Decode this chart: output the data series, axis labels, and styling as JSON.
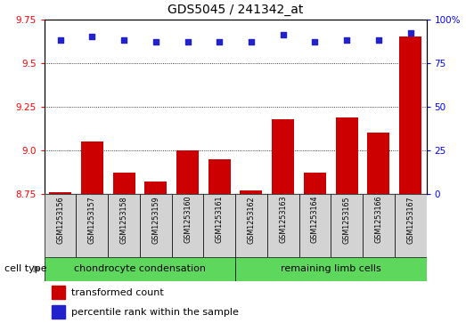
{
  "title": "GDS5045 / 241342_at",
  "samples": [
    "GSM1253156",
    "GSM1253157",
    "GSM1253158",
    "GSM1253159",
    "GSM1253160",
    "GSM1253161",
    "GSM1253162",
    "GSM1253163",
    "GSM1253164",
    "GSM1253165",
    "GSM1253166",
    "GSM1253167"
  ],
  "transformed_counts": [
    8.76,
    9.05,
    8.87,
    8.82,
    9.0,
    8.95,
    8.77,
    9.18,
    8.87,
    9.19,
    9.1,
    9.65
  ],
  "percentile_ranks": [
    88,
    90,
    88,
    87,
    87,
    87,
    87,
    91,
    87,
    88,
    88,
    92
  ],
  "ylim_left": [
    8.75,
    9.75
  ],
  "yticks_left": [
    8.75,
    9.0,
    9.25,
    9.5,
    9.75
  ],
  "ylim_right": [
    0,
    100
  ],
  "yticks_right": [
    0,
    25,
    50,
    75,
    100
  ],
  "bar_color": "#cc0000",
  "dot_color": "#2222cc",
  "group1_label": "chondrocyte condensation",
  "group2_label": "remaining limb cells",
  "group1_indices": [
    0,
    1,
    2,
    3,
    4,
    5
  ],
  "group2_indices": [
    6,
    7,
    8,
    9,
    10,
    11
  ],
  "group_bg": "#5dd85d",
  "sample_bg": "#d3d3d3",
  "cell_type_label": "cell type",
  "legend_bar_label": "transformed count",
  "legend_dot_label": "percentile rank within the sample",
  "title_fontsize": 10,
  "tick_fontsize": 7.5,
  "legend_fontsize": 8,
  "sample_fontsize": 5.8,
  "group_fontsize": 8
}
